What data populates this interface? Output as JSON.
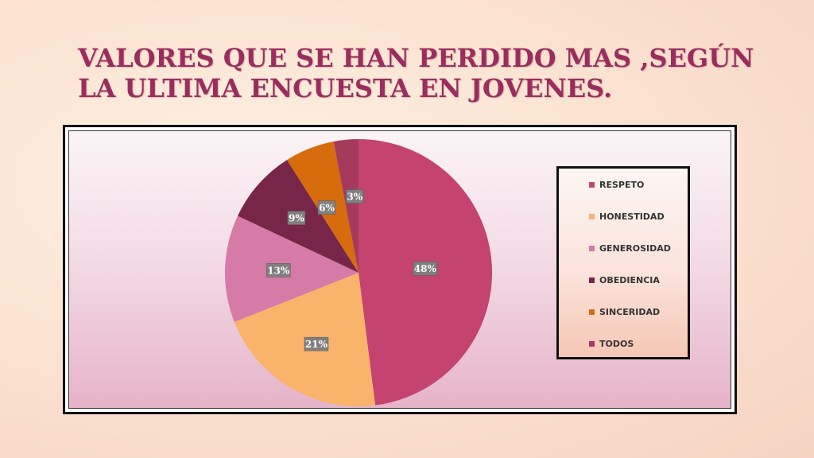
{
  "slide": {
    "title_line1": "VALORES QUE SE HAN PERDIDO MAS ,SEGÚN",
    "title_line2": "LA ULTIMA ENCUESTA EN JOVENES."
  },
  "chart_data": {
    "type": "pie",
    "categories": [
      "RESPETO",
      "HONESTIDAD",
      "GENEROSIDAD",
      "OBEDIENCIA",
      "SINCERIDAD",
      "TODOS"
    ],
    "values": [
      48,
      21,
      13,
      9,
      6,
      3
    ],
    "labels": [
      "48%",
      "21%",
      "13%",
      "9%",
      "6%",
      "3%"
    ],
    "colors": [
      "#c4436f",
      "#f9b36a",
      "#d67aa7",
      "#772548",
      "#d66c0c",
      "#a63a5c"
    ],
    "legend_position": "right"
  }
}
